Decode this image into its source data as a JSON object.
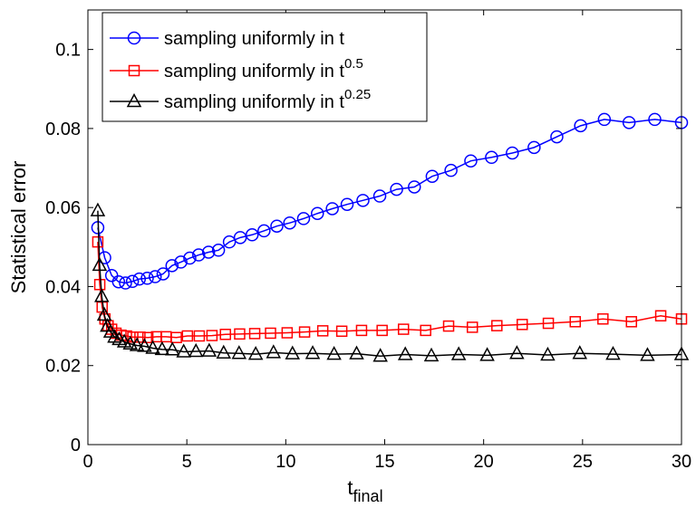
{
  "chart_data": {
    "type": "line",
    "xlabel": "t",
    "xlabel_sub": "final",
    "ylabel": "Statistical error",
    "xlim": [
      0,
      30
    ],
    "ylim": [
      0,
      0.11
    ],
    "xticks": [
      0,
      5,
      10,
      15,
      20,
      25,
      30
    ],
    "xtick_labels": [
      "0",
      "5",
      "10",
      "15",
      "20",
      "25",
      "30"
    ],
    "yticks": [
      0,
      0.02,
      0.04,
      0.06,
      0.08,
      0.1
    ],
    "ytick_labels": [
      "0",
      "0.02",
      "0.04",
      "0.06",
      "0.08",
      "0.1"
    ],
    "grid": false,
    "legend_position": "top-left",
    "series": [
      {
        "name": "sampling uniformly in t",
        "legend_base": "sampling uniformly in t",
        "legend_sup": "",
        "color": "#0000ff",
        "marker": "circle",
        "x": [
          0.5,
          0.85,
          1.2,
          1.55,
          1.9,
          2.25,
          2.6,
          3.0,
          3.4,
          3.8,
          4.25,
          4.7,
          5.15,
          5.6,
          6.1,
          6.6,
          7.15,
          7.7,
          8.3,
          8.9,
          9.55,
          10.2,
          10.9,
          11.6,
          12.35,
          13.1,
          13.9,
          14.75,
          15.6,
          16.5,
          17.4,
          18.35,
          19.35,
          20.4,
          21.45,
          22.55,
          23.7,
          24.9,
          26.1,
          27.35,
          28.65,
          30.0
        ],
        "y": [
          0.0549,
          0.0473,
          0.0428,
          0.0412,
          0.0409,
          0.0413,
          0.0419,
          0.0421,
          0.0425,
          0.0432,
          0.0453,
          0.0462,
          0.0472,
          0.048,
          0.0487,
          0.0492,
          0.0513,
          0.0524,
          0.0531,
          0.0541,
          0.0553,
          0.0561,
          0.0572,
          0.0585,
          0.0597,
          0.0608,
          0.0618,
          0.0629,
          0.0646,
          0.0652,
          0.0679,
          0.0694,
          0.0718,
          0.0727,
          0.0738,
          0.0752,
          0.0779,
          0.0807,
          0.0823,
          0.0815,
          0.0823,
          0.0815
        ]
      },
      {
        "name": "sampling uniformly in t^0.5",
        "legend_base": "sampling uniformly in t",
        "legend_sup": "0.5",
        "color": "#ff0000",
        "marker": "square",
        "x": [
          0.5,
          0.6,
          0.72,
          0.86,
          1.02,
          1.2,
          1.42,
          1.67,
          1.95,
          2.27,
          2.63,
          3.03,
          3.47,
          3.95,
          4.47,
          5.03,
          5.63,
          6.27,
          6.95,
          7.67,
          8.43,
          9.23,
          10.07,
          10.95,
          11.87,
          12.83,
          13.83,
          14.87,
          15.95,
          17.07,
          18.23,
          19.43,
          20.67,
          21.95,
          23.27,
          24.63,
          26.03,
          27.47,
          28.95,
          30.0
        ],
        "y": [
          0.0513,
          0.0405,
          0.0348,
          0.0318,
          0.0301,
          0.0292,
          0.0282,
          0.0277,
          0.0275,
          0.0272,
          0.0272,
          0.0271,
          0.0273,
          0.0273,
          0.0271,
          0.0275,
          0.0275,
          0.0276,
          0.0279,
          0.028,
          0.0281,
          0.0282,
          0.0283,
          0.0285,
          0.0288,
          0.0287,
          0.0289,
          0.0289,
          0.0292,
          0.0289,
          0.03,
          0.0297,
          0.0301,
          0.0304,
          0.0307,
          0.0311,
          0.0318,
          0.0311,
          0.0326,
          0.0318
        ]
      },
      {
        "name": "sampling uniformly in t^0.25",
        "legend_base": "sampling uniformly in t",
        "legend_sup": "0.25",
        "color": "#000000",
        "marker": "triangle",
        "x": [
          0.5,
          0.59,
          0.7,
          0.83,
          0.98,
          1.15,
          1.35,
          1.58,
          1.84,
          2.14,
          2.48,
          2.86,
          3.28,
          3.75,
          4.27,
          4.84,
          5.46,
          6.13,
          6.86,
          7.64,
          8.48,
          9.38,
          10.34,
          11.36,
          12.44,
          13.58,
          14.78,
          16.04,
          17.36,
          18.74,
          20.18,
          21.68,
          23.24,
          24.86,
          26.54,
          28.28,
          30.0
        ],
        "y": [
          0.0592,
          0.0454,
          0.0375,
          0.0328,
          0.03,
          0.0285,
          0.0272,
          0.0266,
          0.026,
          0.0255,
          0.0251,
          0.0249,
          0.0244,
          0.0241,
          0.024,
          0.0235,
          0.0236,
          0.0237,
          0.0232,
          0.0231,
          0.0229,
          0.0233,
          0.023,
          0.0231,
          0.0229,
          0.023,
          0.0224,
          0.0228,
          0.0225,
          0.0228,
          0.0226,
          0.0231,
          0.0227,
          0.0231,
          0.0229,
          0.0226,
          0.0228
        ]
      }
    ]
  }
}
